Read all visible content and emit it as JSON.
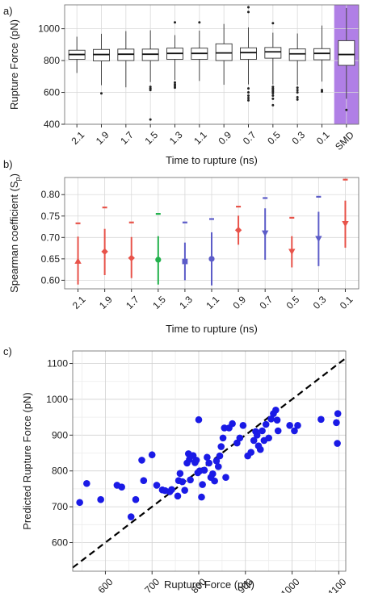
{
  "chart_data": [
    {
      "panel": "a)",
      "type": "box",
      "categories": [
        "2.1",
        "1.9",
        "1.7",
        "1.5",
        "1.3",
        "1.1",
        "0.9",
        "0.7",
        "0.5",
        "0.3",
        "0.1",
        "SMD"
      ],
      "xlabel": "Time to rupture (ns)",
      "ylabel": "Rupture Force (pN)",
      "ylim": [
        400,
        1150
      ],
      "yticks": [
        400,
        600,
        800,
        1000
      ],
      "highlight_category": "SMD",
      "highlight_color": "#b07fe6",
      "boxes": [
        {
          "lw": 722,
          "q1": 808,
          "med": 838,
          "q3": 865,
          "uw": 950,
          "outliers": []
        },
        {
          "lw": 645,
          "q1": 798,
          "med": 838,
          "q3": 870,
          "uw": 968,
          "outliers": [
            594
          ]
        },
        {
          "lw": 632,
          "q1": 800,
          "med": 840,
          "q3": 872,
          "uw": 985,
          "outliers": []
        },
        {
          "lw": 665,
          "q1": 800,
          "med": 840,
          "q3": 872,
          "uw": 990,
          "outliers": [
            635,
            625,
            615,
            430
          ]
        },
        {
          "lw": 678,
          "q1": 808,
          "med": 845,
          "q3": 878,
          "uw": 960,
          "outliers": [
            662,
            650,
            640,
            630,
            1040
          ]
        },
        {
          "lw": 672,
          "q1": 808,
          "med": 845,
          "q3": 878,
          "uw": 988,
          "outliers": [
            1040
          ]
        },
        {
          "lw": 648,
          "q1": 800,
          "med": 848,
          "q3": 905,
          "uw": 1030,
          "outliers": []
        },
        {
          "lw": 650,
          "q1": 808,
          "med": 850,
          "q3": 880,
          "uw": 1008,
          "outliers": [
            625,
            600,
            580,
            565,
            550,
            1105,
            1135
          ]
        },
        {
          "lw": 650,
          "q1": 815,
          "med": 855,
          "q3": 882,
          "uw": 975,
          "outliers": [
            635,
            625,
            615,
            605,
            595,
            580,
            560,
            520,
            1035
          ]
        },
        {
          "lw": 645,
          "q1": 800,
          "med": 842,
          "q3": 873,
          "uw": 970,
          "outliers": [
            630,
            615,
            600,
            570,
            555
          ]
        },
        {
          "lw": 668,
          "q1": 805,
          "med": 845,
          "q3": 875,
          "uw": 1020,
          "outliers": [
            615,
            605
          ]
        },
        {
          "lw": 560,
          "q1": 770,
          "med": 838,
          "q3": 925,
          "uw": 1130,
          "outliers": [
            490
          ]
        }
      ]
    },
    {
      "panel": "b)",
      "type": "errorbar",
      "categories": [
        "2.1",
        "1.9",
        "1.7",
        "1.5",
        "1.3",
        "1.1",
        "0.9",
        "0.7",
        "0.5",
        "0.3",
        "0.1"
      ],
      "xlabel": "Time to rupture (ns)",
      "ylabel": "Spearman coefficient (S",
      "ylabel_sub": "p",
      "ylabel_close": ")",
      "ylim": [
        0.58,
        0.84
      ],
      "yticks": [
        "0.60",
        "0.65",
        "0.70",
        "0.75",
        "0.80"
      ],
      "points": [
        {
          "mean": 0.645,
          "low": 0.59,
          "high": 0.702,
          "top": 0.733,
          "color": "#e8534a",
          "marker": "triangle-up"
        },
        {
          "mean": 0.667,
          "low": 0.612,
          "high": 0.72,
          "top": 0.77,
          "color": "#e8534a",
          "marker": "diamond"
        },
        {
          "mean": 0.652,
          "low": 0.605,
          "high": 0.701,
          "top": 0.735,
          "color": "#e8534a",
          "marker": "diamond"
        },
        {
          "mean": 0.648,
          "low": 0.59,
          "high": 0.703,
          "top": 0.755,
          "color": "#22b14c",
          "marker": "circle"
        },
        {
          "mean": 0.644,
          "low": 0.6,
          "high": 0.688,
          "top": 0.735,
          "color": "#5c5cc8",
          "marker": "square"
        },
        {
          "mean": 0.65,
          "low": 0.588,
          "high": 0.712,
          "top": 0.743,
          "color": "#5c5cc8",
          "marker": "circle"
        },
        {
          "mean": 0.717,
          "low": 0.683,
          "high": 0.751,
          "top": 0.772,
          "color": "#e8534a",
          "marker": "diamond"
        },
        {
          "mean": 0.71,
          "low": 0.648,
          "high": 0.768,
          "top": 0.792,
          "color": "#5c5cc8",
          "marker": "triangle-down"
        },
        {
          "mean": 0.667,
          "low": 0.63,
          "high": 0.703,
          "top": 0.746,
          "color": "#e8534a",
          "marker": "triangle-down"
        },
        {
          "mean": 0.697,
          "low": 0.633,
          "high": 0.76,
          "top": 0.795,
          "color": "#5c5cc8",
          "marker": "triangle-down"
        },
        {
          "mean": 0.732,
          "low": 0.676,
          "high": 0.786,
          "top": 0.835,
          "color": "#e8534a",
          "marker": "triangle-down"
        }
      ]
    },
    {
      "panel": "c)",
      "type": "scatter",
      "xlabel": "Rupture Force (pN)",
      "ylabel": "Predicted Rupture Force (pN)",
      "xlim": [
        530,
        1115
      ],
      "ylim": [
        520,
        1135
      ],
      "xticks": [
        600,
        700,
        800,
        900,
        1000,
        1100
      ],
      "yticks": [
        600,
        700,
        800,
        900,
        1000,
        1100
      ],
      "color": "#1a1ae6",
      "diagonal": true,
      "points": [
        [
          545,
          712
        ],
        [
          560,
          765
        ],
        [
          590,
          720
        ],
        [
          625,
          760
        ],
        [
          635,
          755
        ],
        [
          655,
          672
        ],
        [
          665,
          720
        ],
        [
          678,
          830
        ],
        [
          682,
          773
        ],
        [
          700,
          845
        ],
        [
          710,
          760
        ],
        [
          722,
          747
        ],
        [
          728,
          745
        ],
        [
          738,
          742
        ],
        [
          742,
          748
        ],
        [
          755,
          730
        ],
        [
          757,
          773
        ],
        [
          760,
          793
        ],
        [
          765,
          770
        ],
        [
          770,
          746
        ],
        [
          775,
          822
        ],
        [
          778,
          848
        ],
        [
          780,
          832
        ],
        [
          782,
          775
        ],
        [
          788,
          843
        ],
        [
          792,
          823
        ],
        [
          795,
          830
        ],
        [
          798,
          795
        ],
        [
          800,
          943
        ],
        [
          802,
          800
        ],
        [
          806,
          727
        ],
        [
          808,
          762
        ],
        [
          812,
          802
        ],
        [
          818,
          838
        ],
        [
          822,
          822
        ],
        [
          826,
          782
        ],
        [
          830,
          792
        ],
        [
          834,
          772
        ],
        [
          838,
          828
        ],
        [
          842,
          812
        ],
        [
          845,
          842
        ],
        [
          848,
          868
        ],
        [
          852,
          892
        ],
        [
          855,
          920
        ],
        [
          858,
          782
        ],
        [
          865,
          920
        ],
        [
          872,
          932
        ],
        [
          882,
          878
        ],
        [
          888,
          892
        ],
        [
          895,
          927
        ],
        [
          905,
          842
        ],
        [
          912,
          852
        ],
        [
          918,
          885
        ],
        [
          922,
          910
        ],
        [
          925,
          900
        ],
        [
          928,
          870
        ],
        [
          932,
          860
        ],
        [
          936,
          912
        ],
        [
          940,
          885
        ],
        [
          944,
          930
        ],
        [
          950,
          892
        ],
        [
          955,
          945
        ],
        [
          960,
          960
        ],
        [
          965,
          970
        ],
        [
          968,
          942
        ],
        [
          970,
          912
        ],
        [
          995,
          927
        ],
        [
          1005,
          912
        ],
        [
          1012,
          927
        ],
        [
          1062,
          944
        ],
        [
          1095,
          935
        ],
        [
          1098,
          960
        ],
        [
          1097,
          877
        ]
      ]
    }
  ]
}
